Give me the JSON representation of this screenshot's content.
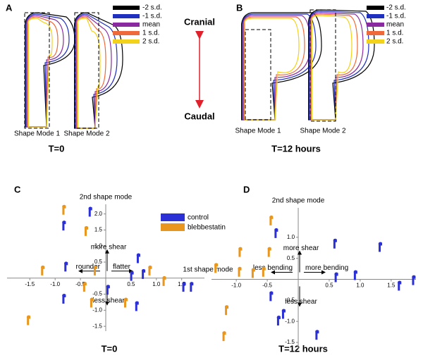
{
  "panels": [
    {
      "label": "A",
      "modes": [
        "Shape Mode 1",
        "Shape Mode 2"
      ],
      "caption": "T=0"
    },
    {
      "label": "B",
      "modes": [
        "Shape Mode 1",
        "Shape Mode 2"
      ],
      "caption": "T=12 hours"
    }
  ],
  "shape_legend": [
    {
      "name": "-2 s.d.",
      "color": "#000000"
    },
    {
      "name": "-1 s.d.",
      "color": "#1f2fbf"
    },
    {
      "name": "mean",
      "color": "#8a2aa0"
    },
    {
      "name": "1 s.d.",
      "color": "#ef6a3a"
    },
    {
      "name": "2 s.d.",
      "color": "#f2d21a"
    }
  ],
  "direction": {
    "top": "Cranial",
    "bottom": "Caudal"
  },
  "chart_data": [
    {
      "type": "scatter",
      "label": "C",
      "caption": "T=0",
      "y_label": "2nd shape mode",
      "x_label": "1st shape mode",
      "annotations": {
        "up": "more shear",
        "down": "less shear",
        "left": "rounder",
        "right": "flatter"
      },
      "xlim": [
        -1.95,
        1.95
      ],
      "ylim": [
        -1.65,
        2.3
      ],
      "xticks": [
        {
          "value": -1.5,
          "label": "-1.5"
        },
        {
          "value": -1,
          "label": "-1.0"
        },
        {
          "value": -0.5,
          "label": "-0.5"
        },
        {
          "value": 0.5,
          "label": "0.5"
        },
        {
          "value": 1,
          "label": "1.0"
        },
        {
          "value": 1.5,
          "label": "1.5"
        }
      ],
      "yticks": [
        {
          "value": 2,
          "label": "2.0"
        },
        1.5,
        {
          "value": 1,
          "label": "1.0"
        },
        0.5,
        -0.5,
        {
          "value": -1,
          "label": "-1.0"
        },
        -1.5
      ],
      "series": [
        {
          "name": "control",
          "color": "#2a2fd6",
          "x": [
            -0.31,
            -0.83,
            -0.79,
            0.64,
            0.74,
            0.51,
            0.04,
            1.54,
            1.69,
            -0.83,
            0.61
          ],
          "values": [
            2.07,
            1.64,
            0.36,
            0.62,
            0.13,
            0.07,
            -0.36,
            -0.27,
            -0.27,
            -0.64,
            -0.87
          ]
        },
        {
          "name": "blebbestatin",
          "color": "#e8961e",
          "x": [
            -0.83,
            -0.39,
            -1.25,
            -0.21,
            0.87,
            1.15,
            -0.42,
            0.39,
            -1.53,
            -0.28
          ],
          "values": [
            2.13,
            1.47,
            0.24,
            0.24,
            0.24,
            -0.09,
            -0.27,
            -0.76,
            -1.31,
            -0.76
          ]
        }
      ]
    },
    {
      "type": "scatter",
      "label": "D",
      "caption": "T=12 hours",
      "y_label": "2nd shape mode",
      "annotations": {
        "up": "more shear",
        "down": "less shear",
        "left": "less bending",
        "right": "more bending"
      },
      "xlim": [
        -1.4,
        1.9
      ],
      "ylim": [
        -1.65,
        1.7
      ],
      "xticks": [
        {
          "value": -1,
          "label": "-1.0"
        },
        {
          "value": -0.5,
          "label": "-0.5"
        },
        {
          "value": 0.5,
          "label": "0.5"
        },
        {
          "value": 1,
          "label": "1.0"
        },
        {
          "value": 1.5,
          "label": "1.5"
        }
      ],
      "yticks": [
        {
          "value": 1,
          "label": "1.0"
        },
        0.5,
        -0.5,
        {
          "value": -1,
          "label": "-1.0"
        },
        -1.5
      ],
      "series": [
        {
          "color": "#2a2fd6",
          "x": [
            -0.36,
            0.59,
            1.32,
            0.61,
            0.92,
            1.63,
            1.86,
            -0.44,
            -0.24,
            -0.32,
            0.3
          ],
          "values": [
            1.1,
            0.85,
            0.77,
            0.05,
            0.1,
            -0.15,
            -0.02,
            -0.4,
            -0.82,
            -0.98,
            -1.32
          ]
        },
        {
          "color": "#e8961e",
          "x": [
            -0.44,
            -0.94,
            -0.47,
            -1.33,
            -0.95,
            -0.73,
            -0.56,
            -1.16,
            -1.2
          ],
          "values": [
            1.4,
            0.65,
            0.65,
            0.27,
            0.18,
            0.15,
            0.18,
            -0.73,
            -1.35
          ]
        }
      ]
    }
  ]
}
